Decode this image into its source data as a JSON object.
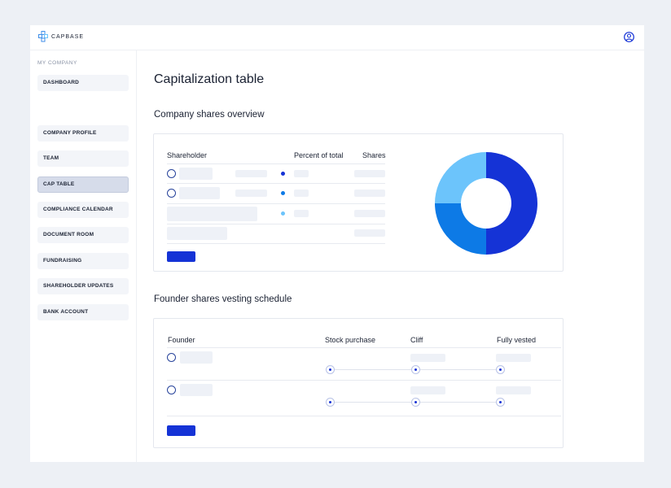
{
  "app": {
    "name": "CAPBASE"
  },
  "header": {
    "user_icon": "user-circle-icon",
    "logo_icon": "capbase-logo-icon"
  },
  "sidebar": {
    "heading": "MY COMPANY",
    "items": [
      {
        "label": "DASHBOARD",
        "active": false
      },
      {
        "label": "COMPANY PROFILE",
        "active": false
      },
      {
        "label": "TEAM",
        "active": false
      },
      {
        "label": "CAP TABLE",
        "active": true
      },
      {
        "label": "COMPLIANCE CALENDAR",
        "active": false
      },
      {
        "label": "DOCUMENT ROOM",
        "active": false
      },
      {
        "label": "FUNDRAISING",
        "active": false
      },
      {
        "label": "SHAREHOLDER UPDATES",
        "active": false
      },
      {
        "label": "BANK ACCOUNT",
        "active": false
      }
    ]
  },
  "main": {
    "title": "Capitalization table",
    "overview": {
      "title": "Company shares overview",
      "columns": [
        "Shareholder",
        "Percent of total",
        "Shares"
      ],
      "chart_data": {
        "type": "pie",
        "values": [
          50,
          25,
          25
        ],
        "colors": [
          "#1533d6",
          "#0d7ae6",
          "#6cc4fb"
        ]
      }
    },
    "vesting": {
      "title": "Founder shares vesting schedule",
      "columns": [
        "Founder",
        "Stock purchase",
        "Cliff",
        "Fully vested"
      ]
    }
  },
  "colors": {
    "accent": "#1533d6",
    "mid": "#0d7ae6",
    "light": "#6cc4fb"
  }
}
